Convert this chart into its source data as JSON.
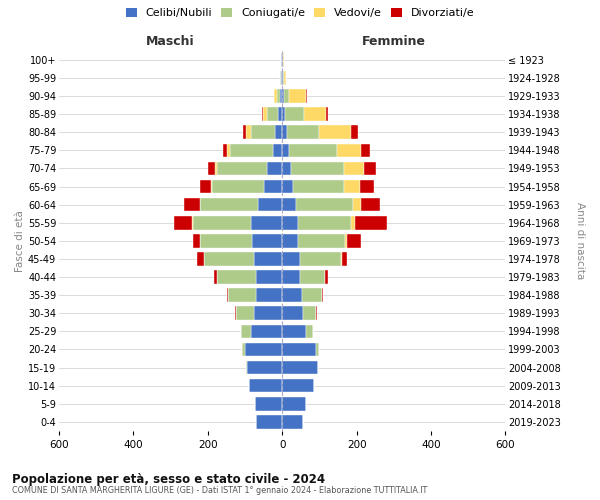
{
  "age_groups": [
    "100+",
    "95-99",
    "90-94",
    "85-89",
    "80-84",
    "75-79",
    "70-74",
    "65-69",
    "60-64",
    "55-59",
    "50-54",
    "45-49",
    "40-44",
    "35-39",
    "30-34",
    "25-29",
    "20-24",
    "15-19",
    "10-14",
    "5-9",
    "0-4"
  ],
  "birth_years": [
    "≤ 1923",
    "1924-1928",
    "1929-1933",
    "1934-1938",
    "1939-1943",
    "1944-1948",
    "1949-1953",
    "1954-1958",
    "1959-1963",
    "1964-1968",
    "1969-1973",
    "1974-1978",
    "1979-1983",
    "1984-1988",
    "1989-1993",
    "1994-1998",
    "1999-2003",
    "2004-2008",
    "2009-2013",
    "2014-2018",
    "2019-2023"
  ],
  "colors": {
    "celibe": "#4472C4",
    "coniugato": "#AECB8A",
    "vedovo": "#FFD966",
    "divorziato": "#CC0000"
  },
  "maschi": {
    "celibe": [
      2,
      3,
      5,
      12,
      18,
      25,
      40,
      50,
      65,
      85,
      80,
      75,
      70,
      70,
      75,
      85,
      100,
      95,
      90,
      72,
      70
    ],
    "coniugato": [
      0,
      2,
      8,
      30,
      65,
      115,
      135,
      138,
      155,
      155,
      140,
      135,
      105,
      75,
      50,
      25,
      8,
      2,
      0,
      0,
      0
    ],
    "vedovo": [
      0,
      2,
      8,
      10,
      15,
      8,
      6,
      4,
      2,
      2,
      1,
      0,
      0,
      0,
      0,
      0,
      0,
      0,
      0,
      0,
      0
    ],
    "divorziato": [
      0,
      0,
      2,
      3,
      8,
      10,
      18,
      28,
      42,
      48,
      18,
      18,
      8,
      4,
      2,
      2,
      0,
      0,
      0,
      0,
      0
    ]
  },
  "femmine": {
    "celibe": [
      2,
      2,
      4,
      8,
      12,
      18,
      25,
      28,
      38,
      42,
      42,
      47,
      47,
      52,
      57,
      65,
      90,
      95,
      85,
      65,
      55
    ],
    "coniugato": [
      0,
      2,
      15,
      50,
      88,
      130,
      140,
      138,
      152,
      142,
      128,
      112,
      68,
      55,
      35,
      18,
      8,
      2,
      0,
      0,
      0
    ],
    "vedovo": [
      2,
      5,
      45,
      60,
      85,
      65,
      55,
      42,
      22,
      12,
      4,
      2,
      0,
      0,
      0,
      0,
      0,
      0,
      0,
      0,
      0
    ],
    "divorziato": [
      0,
      0,
      2,
      4,
      18,
      22,
      32,
      38,
      50,
      85,
      38,
      12,
      8,
      2,
      2,
      0,
      0,
      0,
      0,
      0,
      0
    ]
  },
  "xlim": 600,
  "title": "Popolazione per età, sesso e stato civile - 2024",
  "subtitle": "COMUNE DI SANTA MARGHERITA LIGURE (GE) - Dati ISTAT 1° gennaio 2024 - Elaborazione TUTTITALIA.IT",
  "xlabel_left": "Maschi",
  "xlabel_right": "Femmine",
  "ylabel_left": "Fasce di età",
  "ylabel_right": "Anni di nascita",
  "legend_labels": [
    "Celibi/Nubili",
    "Coniugati/e",
    "Vedovi/e",
    "Divorziati/e"
  ],
  "background_color": "#ffffff",
  "grid_color": "#cccccc"
}
